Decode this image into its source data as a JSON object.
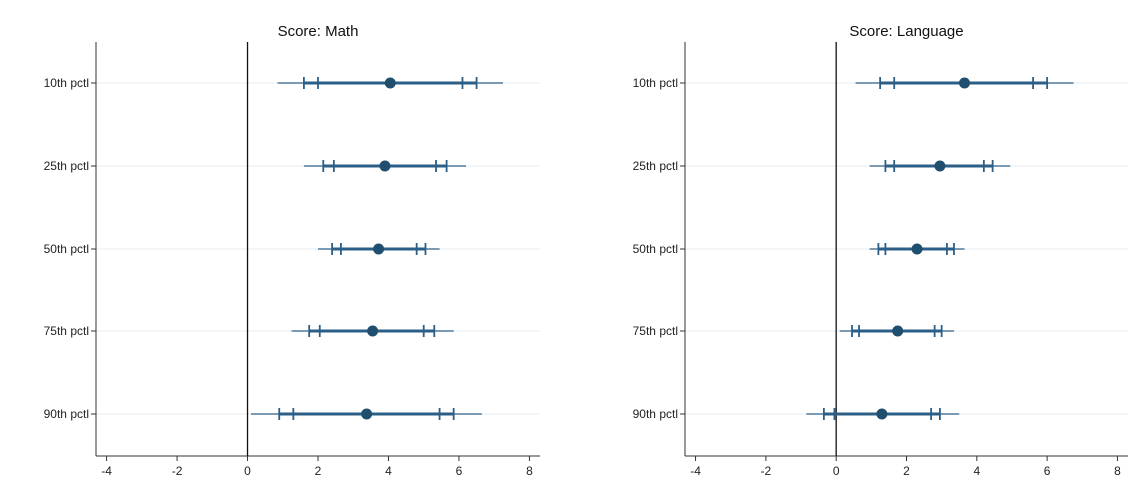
{
  "chart_data": [
    {
      "type": "coefficient_plot",
      "title": "Score: Math",
      "xlabel": "",
      "ylabel": "",
      "xlim": [
        -4.3,
        8.3
      ],
      "xticks": [
        -4,
        -2,
        0,
        2,
        4,
        6,
        8
      ],
      "reference_line_x": 0,
      "grid": true,
      "colors": {
        "marker": "#1f4e6e",
        "line": "#2c5f87"
      },
      "categories": [
        "10th pctl",
        "25th pctl",
        "50th pctl",
        "75th pctl",
        "90th pctl"
      ],
      "estimates": [
        4.05,
        3.9,
        3.72,
        3.55,
        3.38
      ],
      "ci_inner": [
        [
          2.0,
          6.1
        ],
        [
          2.45,
          5.35
        ],
        [
          2.65,
          4.8
        ],
        [
          2.05,
          5.0
        ],
        [
          1.3,
          5.45
        ]
      ],
      "ci_outer": [
        [
          1.6,
          6.5
        ],
        [
          2.15,
          5.65
        ],
        [
          2.4,
          5.05
        ],
        [
          1.75,
          5.3
        ],
        [
          0.9,
          5.85
        ]
      ],
      "ci_full": [
        [
          0.85,
          7.25
        ],
        [
          1.6,
          6.2
        ],
        [
          2.0,
          5.45
        ],
        [
          1.25,
          5.85
        ],
        [
          0.1,
          6.65
        ]
      ]
    },
    {
      "type": "coefficient_plot",
      "title": "Score: Language",
      "xlabel": "",
      "ylabel": "",
      "xlim": [
        -4.3,
        8.3
      ],
      "xticks": [
        -4,
        -2,
        0,
        2,
        4,
        6,
        8
      ],
      "reference_line_x": 0,
      "grid": true,
      "colors": {
        "marker": "#1f4e6e",
        "line": "#2c5f87"
      },
      "categories": [
        "10th pctl",
        "25th pctl",
        "50th pctl",
        "75th pctl",
        "90th pctl"
      ],
      "estimates": [
        3.65,
        2.95,
        2.3,
        1.75,
        1.3
      ],
      "ci_inner": [
        [
          1.65,
          5.6
        ],
        [
          1.65,
          4.2
        ],
        [
          1.4,
          3.15
        ],
        [
          0.65,
          2.8
        ],
        [
          -0.05,
          2.7
        ]
      ],
      "ci_outer": [
        [
          1.25,
          6.0
        ],
        [
          1.4,
          4.45
        ],
        [
          1.2,
          3.35
        ],
        [
          0.45,
          3.0
        ],
        [
          -0.35,
          2.95
        ]
      ],
      "ci_full": [
        [
          0.55,
          6.75
        ],
        [
          0.95,
          4.95
        ],
        [
          0.95,
          3.65
        ],
        [
          0.1,
          3.35
        ],
        [
          -0.85,
          3.5
        ]
      ]
    }
  ]
}
